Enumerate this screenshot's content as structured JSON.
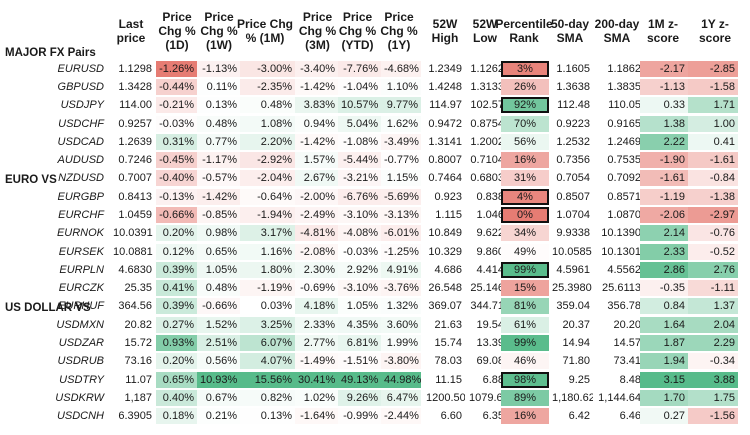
{
  "headers": [
    "Last price",
    "Price Chg % (1D)",
    "Price Chg % (1W)",
    "Price Chg % (1M)",
    "Price Chg % (3M)",
    "Price Chg % (YTD)",
    "Price Chg % (1Y)",
    "52W High",
    "52W Low",
    "Percentile Rank",
    "50-day SMA",
    "200-day SMA",
    "1M z-score",
    "1Y z-score"
  ],
  "sections": [
    {
      "title": "MAJOR FX Pairs",
      "rows": [
        {
          "name": "EURUSD",
          "values": [
            "1.1298",
            "-1.26%",
            "-1.13%",
            "-3.00%",
            "-3.40%",
            "-7.76%",
            "-4.68%",
            "1.2349",
            "1.1262",
            "3%",
            "1.1605",
            "1.1862",
            "-2.17",
            "-2.85"
          ],
          "highlight": true
        },
        {
          "name": "GBPUSD",
          "values": [
            "1.3428",
            "-0.44%",
            "0.11%",
            "-2.35%",
            "-1.42%",
            "-1.04%",
            "1.10%",
            "1.4248",
            "1.3133",
            "26%",
            "1.3638",
            "1.3835",
            "-1.13",
            "-1.58"
          ]
        },
        {
          "name": "USDJPY",
          "values": [
            "114.00",
            "-0.21%",
            "0.13%",
            "0.48%",
            "3.83%",
            "10.57%",
            "9.77%",
            "114.97",
            "102.57",
            "92%",
            "112.48",
            "110.05",
            "0.33",
            "1.71"
          ],
          "highlight": true
        },
        {
          "name": "USDCHF",
          "values": [
            "0.9257",
            "-0.03%",
            "0.48%",
            "1.08%",
            "0.94%",
            "5.04%",
            "1.62%",
            "0.9472",
            "0.8754",
            "70%",
            "0.9223",
            "0.9165",
            "1.38",
            "1.00"
          ]
        },
        {
          "name": "USDCAD",
          "values": [
            "1.2639",
            "0.31%",
            "0.77%",
            "2.20%",
            "-1.42%",
            "-1.08%",
            "-3.49%",
            "1.3141",
            "1.2002",
            "56%",
            "1.2532",
            "1.2469",
            "2.22",
            "0.41"
          ]
        },
        {
          "name": "AUDUSD",
          "values": [
            "0.7246",
            "-0.45%",
            "-1.17%",
            "-2.92%",
            "1.57%",
            "-5.44%",
            "-0.77%",
            "0.8007",
            "0.7104",
            "16%",
            "0.7356",
            "0.7535",
            "-1.90",
            "-1.61"
          ]
        },
        {
          "name": "NZDUSD",
          "values": [
            "0.7007",
            "-0.40%",
            "-0.57%",
            "-2.04%",
            "2.67%",
            "-3.21%",
            "1.15%",
            "0.7464",
            "0.6803",
            "31%",
            "0.7054",
            "0.7092",
            "-1.61",
            "-0.84"
          ]
        }
      ]
    },
    {
      "title": "EURO VS",
      "rows": [
        {
          "name": "EURGBP",
          "values": [
            "0.8413",
            "-0.13%",
            "-1.42%",
            "-0.64%",
            "-2.00%",
            "-6.76%",
            "-5.69%",
            "0.923",
            "0.838",
            "4%",
            "0.8507",
            "0.8571",
            "-1.19",
            "-1.38"
          ],
          "highlight": true
        },
        {
          "name": "EURCHF",
          "values": [
            "1.0459",
            "-0.66%",
            "-0.85%",
            "-1.94%",
            "-2.49%",
            "-3.10%",
            "-3.13%",
            "1.115",
            "1.046",
            "0%",
            "1.0704",
            "1.0870",
            "-2.06",
            "-2.97"
          ],
          "highlight": true
        },
        {
          "name": "EURNOK",
          "values": [
            "10.0391",
            "0.20%",
            "0.98%",
            "3.17%",
            "-4.81%",
            "-4.08%",
            "-6.01%",
            "10.849",
            "9.622",
            "34%",
            "9.9338",
            "10.1390",
            "2.14",
            "-0.76"
          ]
        },
        {
          "name": "EURSEK",
          "values": [
            "10.0881",
            "0.12%",
            "0.65%",
            "1.16%",
            "-2.08%",
            "-0.03%",
            "-1.25%",
            "10.329",
            "9.860",
            "49%",
            "10.0585",
            "10.1301",
            "2.33",
            "-0.52"
          ]
        },
        {
          "name": "EURPLN",
          "values": [
            "4.6830",
            "0.39%",
            "1.05%",
            "1.80%",
            "2.30%",
            "2.92%",
            "4.91%",
            "4.686",
            "4.414",
            "99%",
            "4.5961",
            "4.5562",
            "2.86",
            "2.76"
          ],
          "highlight": true
        },
        {
          "name": "EURCZK",
          "values": [
            "25.35",
            "0.41%",
            "0.48%",
            "-1.19%",
            "-0.69%",
            "-3.10%",
            "-3.76%",
            "26.548",
            "25.146",
            "15%",
            "25.3980",
            "25.6113",
            "-0.35",
            "-1.11"
          ]
        },
        {
          "name": "EURHUF",
          "values": [
            "364.56",
            "0.39%",
            "-0.66%",
            "0.03%",
            "4.18%",
            "1.05%",
            "1.32%",
            "369.07",
            "344.71",
            "81%",
            "359.04",
            "356.78",
            "0.84",
            "1.37"
          ]
        }
      ]
    },
    {
      "title": "US DOLLAR VS",
      "rows": [
        {
          "name": "USDMXN",
          "values": [
            "20.82",
            "0.27%",
            "1.52%",
            "3.25%",
            "2.33%",
            "4.35%",
            "3.60%",
            "21.63",
            "19.54",
            "61%",
            "20.37",
            "20.20",
            "1.64",
            "2.04"
          ]
        },
        {
          "name": "USDZAR",
          "values": [
            "15.72",
            "0.93%",
            "2.51%",
            "6.07%",
            "2.77%",
            "6.81%",
            "1.99%",
            "15.74",
            "13.39",
            "99%",
            "14.94",
            "14.57",
            "1.87",
            "2.29"
          ]
        },
        {
          "name": "USDRUB",
          "values": [
            "73.16",
            "0.20%",
            "0.56%",
            "4.07%",
            "-1.49%",
            "-1.51%",
            "-3.80%",
            "78.03",
            "69.08",
            "46%",
            "71.80",
            "73.41",
            "1.94",
            "-0.34"
          ]
        },
        {
          "name": "USDTRY",
          "values": [
            "11.07",
            "0.65%",
            "10.93%",
            "15.56%",
            "30.41%",
            "49.13%",
            "44.98%",
            "11.15",
            "6.88",
            "98%",
            "9.25",
            "8.48",
            "3.15",
            "3.88"
          ],
          "highlight": true
        },
        {
          "name": "USDKRW",
          "values": [
            "1,187",
            "0.40%",
            "0.67%",
            "0.82%",
            "1.02%",
            "9.26%",
            "6.47%",
            "1200.50",
            "1079.66",
            "89%",
            "1,180.62",
            "1,144.64",
            "1.70",
            "1.75"
          ]
        },
        {
          "name": "USDCNH",
          "values": [
            "6.3905",
            "0.18%",
            "0.21%",
            "0.13%",
            "-1.64%",
            "-0.99%",
            "-2.44%",
            "6.60",
            "6.35",
            "16%",
            "6.42",
            "6.46",
            "0.27",
            "-1.56"
          ]
        }
      ]
    }
  ],
  "colors": {
    "green_max": "#57bb8a",
    "red_max": "#e67c73",
    "white": "#ffffff"
  }
}
